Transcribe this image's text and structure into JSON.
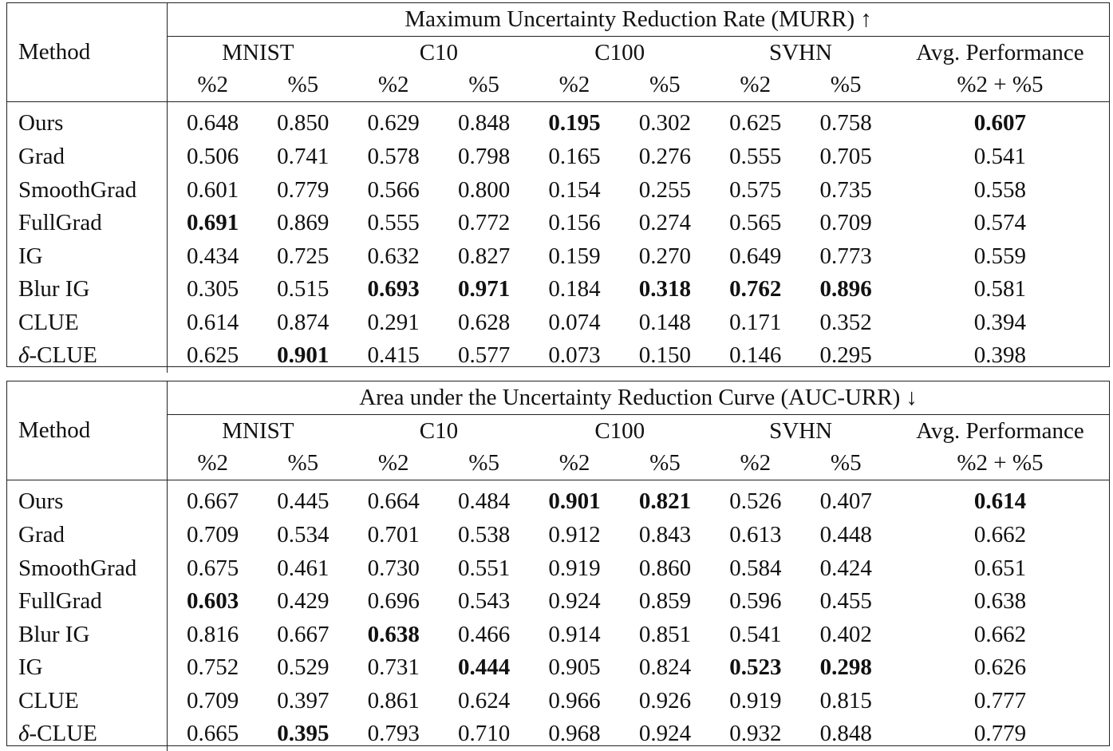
{
  "tables": [
    {
      "title": "Maximum Uncertainty Reduction Rate (MURR) ↑",
      "method_header": "Method",
      "groups": [
        "MNIST",
        "C10",
        "C100",
        "SVHN",
        "Avg. Performance"
      ],
      "subs": [
        "%2",
        "%5",
        "%2",
        "%5",
        "%2",
        "%5",
        "%2",
        "%5",
        "%2 + %5"
      ],
      "rows": [
        {
          "method": "Ours",
          "values": [
            "0.648",
            "0.850",
            "0.629",
            "0.848",
            "0.195",
            "0.302",
            "0.625",
            "0.758",
            "0.607"
          ],
          "bold": [
            4,
            8
          ]
        },
        {
          "method": "Grad",
          "values": [
            "0.506",
            "0.741",
            "0.578",
            "0.798",
            "0.165",
            "0.276",
            "0.555",
            "0.705",
            "0.541"
          ],
          "bold": []
        },
        {
          "method": "SmoothGrad",
          "values": [
            "0.601",
            "0.779",
            "0.566",
            "0.800",
            "0.154",
            "0.255",
            "0.575",
            "0.735",
            "0.558"
          ],
          "bold": []
        },
        {
          "method": "FullGrad",
          "values": [
            "0.691",
            "0.869",
            "0.555",
            "0.772",
            "0.156",
            "0.274",
            "0.565",
            "0.709",
            "0.574"
          ],
          "bold": [
            0
          ]
        },
        {
          "method": "IG",
          "values": [
            "0.434",
            "0.725",
            "0.632",
            "0.827",
            "0.159",
            "0.270",
            "0.649",
            "0.773",
            "0.559"
          ],
          "bold": []
        },
        {
          "method": "Blur IG",
          "values": [
            "0.305",
            "0.515",
            "0.693",
            "0.971",
            "0.184",
            "0.318",
            "0.762",
            "0.896",
            "0.581"
          ],
          "bold": [
            2,
            3,
            5,
            6,
            7
          ]
        },
        {
          "method": "CLUE",
          "values": [
            "0.614",
            "0.874",
            "0.291",
            "0.628",
            "0.074",
            "0.148",
            "0.171",
            "0.352",
            "0.394"
          ],
          "bold": []
        },
        {
          "method": "δ-CLUE",
          "values": [
            "0.625",
            "0.901",
            "0.415",
            "0.577",
            "0.073",
            "0.150",
            "0.146",
            "0.295",
            "0.398"
          ],
          "bold": [
            1
          ]
        }
      ]
    },
    {
      "title": "Area under the Uncertainty Reduction Curve (AUC-URR) ↓",
      "method_header": "Method",
      "groups": [
        "MNIST",
        "C10",
        "C100",
        "SVHN",
        "Avg. Performance"
      ],
      "subs": [
        "%2",
        "%5",
        "%2",
        "%5",
        "%2",
        "%5",
        "%2",
        "%5",
        "%2 + %5"
      ],
      "rows": [
        {
          "method": "Ours",
          "values": [
            "0.667",
            "0.445",
            "0.664",
            "0.484",
            "0.901",
            "0.821",
            "0.526",
            "0.407",
            "0.614"
          ],
          "bold": [
            4,
            5,
            8
          ]
        },
        {
          "method": "Grad",
          "values": [
            "0.709",
            "0.534",
            "0.701",
            "0.538",
            "0.912",
            "0.843",
            "0.613",
            "0.448",
            "0.662"
          ],
          "bold": []
        },
        {
          "method": "SmoothGrad",
          "values": [
            "0.675",
            "0.461",
            "0.730",
            "0.551",
            "0.919",
            "0.860",
            "0.584",
            "0.424",
            "0.651"
          ],
          "bold": []
        },
        {
          "method": "FullGrad",
          "values": [
            "0.603",
            "0.429",
            "0.696",
            "0.543",
            "0.924",
            "0.859",
            "0.596",
            "0.455",
            "0.638"
          ],
          "bold": [
            0
          ]
        },
        {
          "method": "Blur IG",
          "values": [
            "0.816",
            "0.667",
            "0.638",
            "0.466",
            "0.914",
            "0.851",
            "0.541",
            "0.402",
            "0.662"
          ],
          "bold": [
            2
          ]
        },
        {
          "method": "IG",
          "values": [
            "0.752",
            "0.529",
            "0.731",
            "0.444",
            "0.905",
            "0.824",
            "0.523",
            "0.298",
            "0.626"
          ],
          "bold": [
            3,
            6,
            7
          ]
        },
        {
          "method": "CLUE",
          "values": [
            "0.709",
            "0.397",
            "0.861",
            "0.624",
            "0.966",
            "0.926",
            "0.919",
            "0.815",
            "0.777"
          ],
          "bold": []
        },
        {
          "method": "δ-CLUE",
          "values": [
            "0.665",
            "0.395",
            "0.793",
            "0.710",
            "0.968",
            "0.924",
            "0.932",
            "0.848",
            "0.779"
          ],
          "bold": [
            1
          ]
        }
      ]
    }
  ]
}
